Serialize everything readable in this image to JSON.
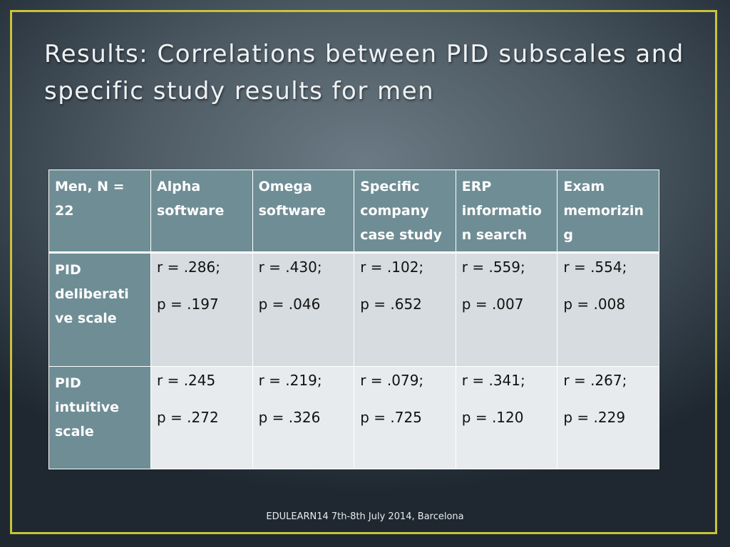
{
  "slide": {
    "title": "Results: Correlations between PID subscales and specific study results for men",
    "footer": "EDULEARN14 7th-8th July 2014, Barcelona"
  },
  "table": {
    "corner": "Men,  N  = 22",
    "columns": [
      "Alpha software",
      "Omega software",
      "Specific company case study",
      "ERP informatio n search",
      "Exam memorizin g"
    ],
    "rows": [
      {
        "label": "PID deliberati ve scale",
        "cells": [
          {
            "r": "r = .286;",
            "p": "p = .197"
          },
          {
            "r": "r = .430;",
            "p": "p = .046"
          },
          {
            "r": "r = .102;",
            "p": "p = .652"
          },
          {
            "r": "r = .559;",
            "p": "p = .007"
          },
          {
            "r": "r = .554;",
            "p": "p = .008"
          }
        ]
      },
      {
        "label": "PID intuitive scale",
        "cells": [
          {
            "r": "r = .245",
            "p": "p = .272"
          },
          {
            "r": "r = .219;",
            "p": "p = .326"
          },
          {
            "r": "r = .079;",
            "p": "p = .725"
          },
          {
            "r": "r = .341;",
            "p": "p = .120"
          },
          {
            "r": "r = .267;",
            "p": "p = .229"
          }
        ]
      }
    ]
  },
  "colors": {
    "frame": "#c9c23a",
    "header_fill": "#6f8d95",
    "row1_fill": "#d6dcdf",
    "row2_fill": "#e7ebed"
  }
}
